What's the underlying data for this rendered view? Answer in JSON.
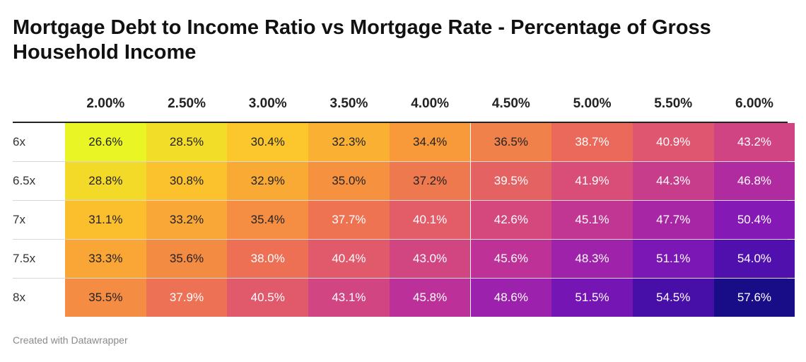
{
  "title": "Mortgage Debt to Income Ratio vs Mortgage Rate - Percentage of Gross Household Income",
  "footer": "Created with Datawrapper",
  "chart_data": {
    "type": "heatmap",
    "title": "Mortgage Debt to Income Ratio vs Mortgage Rate - Percentage of Gross Household Income",
    "columns": [
      "2.00%",
      "2.50%",
      "3.00%",
      "3.50%",
      "4.00%",
      "4.50%",
      "5.00%",
      "5.50%",
      "6.00%"
    ],
    "rows": [
      {
        "label": "6x",
        "values": [
          "26.6%",
          "28.5%",
          "30.4%",
          "32.3%",
          "34.4%",
          "36.5%",
          "38.7%",
          "40.9%",
          "43.2%"
        ]
      },
      {
        "label": "6.5x",
        "values": [
          "28.8%",
          "30.8%",
          "32.9%",
          "35.0%",
          "37.2%",
          "39.5%",
          "41.9%",
          "44.3%",
          "46.8%"
        ]
      },
      {
        "label": "7x",
        "values": [
          "31.1%",
          "33.2%",
          "35.4%",
          "37.7%",
          "40.1%",
          "42.6%",
          "45.1%",
          "47.7%",
          "50.4%"
        ]
      },
      {
        "label": "7.5x",
        "values": [
          "33.3%",
          "35.6%",
          "38.0%",
          "40.4%",
          "43.0%",
          "45.6%",
          "48.3%",
          "51.1%",
          "54.0%"
        ]
      },
      {
        "label": "8x",
        "values": [
          "35.5%",
          "37.9%",
          "40.5%",
          "43.1%",
          "45.8%",
          "48.6%",
          "51.5%",
          "54.5%",
          "57.6%"
        ]
      }
    ],
    "color_scale": [
      "#e9f524",
      "#fbc62c",
      "#f89a3a",
      "#ec6d57",
      "#d84c7a",
      "#bb2f9a",
      "#8d1ab6",
      "#5410b1",
      "#180d86"
    ],
    "value_range": [
      26.6,
      57.6
    ]
  }
}
